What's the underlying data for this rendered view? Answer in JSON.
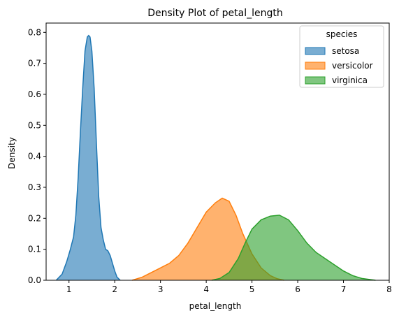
{
  "chart_data": {
    "type": "area",
    "title": "Density Plot of petal_length",
    "xlabel": "petal_length",
    "ylabel": "Density",
    "xlim": [
      0.5,
      8
    ],
    "ylim": [
      0,
      0.83
    ],
    "xticks": [
      1,
      2,
      3,
      4,
      5,
      6,
      7,
      8
    ],
    "yticks": [
      0.0,
      0.1,
      0.2,
      0.3,
      0.4,
      0.5,
      0.6,
      0.7,
      0.8
    ],
    "xtick_labels": [
      "1",
      "2",
      "3",
      "4",
      "5",
      "6",
      "7",
      "8"
    ],
    "ytick_labels": [
      "0.0",
      "0.1",
      "0.2",
      "0.3",
      "0.4",
      "0.5",
      "0.6",
      "0.7",
      "0.8"
    ],
    "grid": false,
    "legend": {
      "title": "species",
      "placement": "top-right"
    },
    "series": [
      {
        "name": "setosa",
        "color": "#1f77b4",
        "x": [
          0.72,
          0.85,
          0.95,
          1.03,
          1.1,
          1.15,
          1.2,
          1.25,
          1.3,
          1.35,
          1.4,
          1.43,
          1.46,
          1.5,
          1.55,
          1.6,
          1.65,
          1.7,
          1.75,
          1.8,
          1.85,
          1.9,
          1.95,
          2.0,
          2.05,
          2.12
        ],
        "y": [
          0.0,
          0.02,
          0.06,
          0.1,
          0.14,
          0.21,
          0.33,
          0.48,
          0.62,
          0.74,
          0.785,
          0.79,
          0.785,
          0.74,
          0.62,
          0.44,
          0.27,
          0.17,
          0.13,
          0.1,
          0.095,
          0.08,
          0.055,
          0.03,
          0.01,
          0.0
        ]
      },
      {
        "name": "versicolor",
        "color": "#ff7f0e",
        "x": [
          2.38,
          2.6,
          2.8,
          3.0,
          3.2,
          3.4,
          3.6,
          3.8,
          4.0,
          4.2,
          4.35,
          4.5,
          4.65,
          4.8,
          5.0,
          5.2,
          5.4,
          5.55,
          5.7
        ],
        "y": [
          0.0,
          0.01,
          0.025,
          0.04,
          0.055,
          0.08,
          0.12,
          0.17,
          0.22,
          0.25,
          0.265,
          0.255,
          0.21,
          0.15,
          0.085,
          0.04,
          0.015,
          0.005,
          0.0
        ]
      },
      {
        "name": "virginica",
        "color": "#2ca02c",
        "x": [
          4.12,
          4.3,
          4.5,
          4.7,
          4.85,
          5.0,
          5.2,
          5.4,
          5.6,
          5.8,
          6.0,
          6.2,
          6.4,
          6.6,
          6.8,
          7.0,
          7.2,
          7.4,
          7.6,
          7.7
        ],
        "y": [
          0.0,
          0.006,
          0.025,
          0.07,
          0.12,
          0.165,
          0.195,
          0.207,
          0.21,
          0.195,
          0.16,
          0.12,
          0.09,
          0.07,
          0.05,
          0.03,
          0.015,
          0.006,
          0.002,
          0.0
        ]
      }
    ]
  }
}
